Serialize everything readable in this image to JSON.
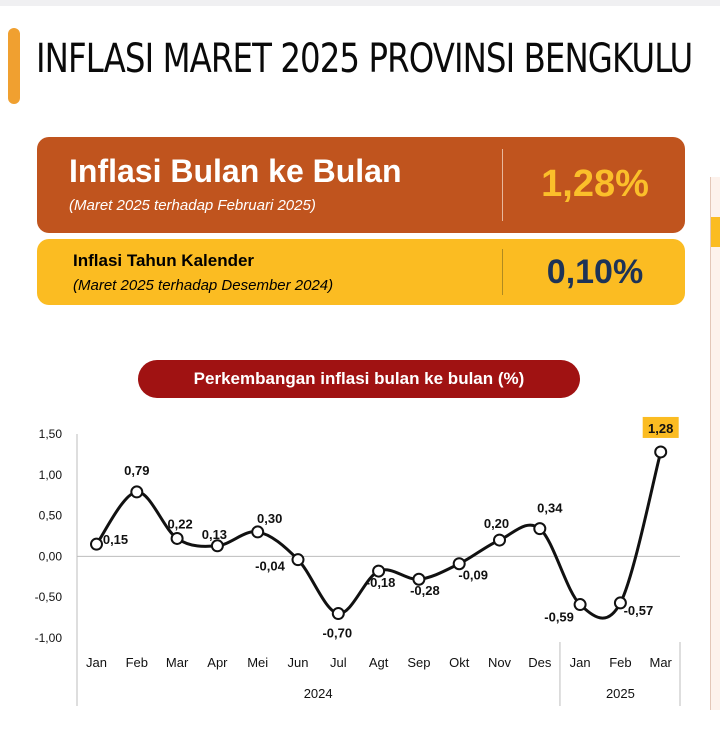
{
  "header": {
    "title": "INFLASI MARET 2025 PROVINSI BENGKULU"
  },
  "cards": {
    "mtm": {
      "title": "Inflasi Bulan ke Bulan",
      "subtitle": "(Maret 2025 terhadap Februari 2025)",
      "value": "1,28%"
    },
    "ytd": {
      "title": "Inflasi Tahun Kalender",
      "subtitle": "(Maret 2025 terhadap Desember 2024)",
      "value": "0,10%"
    }
  },
  "colors": {
    "accent": "#f0a030",
    "mtm_card": "#c0541e",
    "ytd_card": "#fbbc22",
    "mtm_value": "#fbbf2a",
    "ytd_value": "#1d3357",
    "chart_pill": "#a01212",
    "line": "#111111",
    "highlight_label": "#fbbc22"
  },
  "chart_data": {
    "type": "line",
    "title": "Perkembangan inflasi bulan ke bulan (%)",
    "categories": [
      "Jan",
      "Feb",
      "Mar",
      "Apr",
      "Mei",
      "Jun",
      "Jul",
      "Agt",
      "Sep",
      "Okt",
      "Nov",
      "Des",
      "Jan",
      "Feb",
      "Mar"
    ],
    "groups": [
      {
        "label": "2024",
        "count": 12
      },
      {
        "label": "2025",
        "count": 3
      }
    ],
    "values": [
      0.15,
      0.79,
      0.22,
      0.13,
      0.3,
      -0.04,
      -0.7,
      -0.18,
      -0.28,
      -0.09,
      0.2,
      0.34,
      -0.59,
      -0.57,
      1.28
    ],
    "data_labels": [
      "0,15",
      "0,79",
      "0,22",
      "0,13",
      "0,30",
      "-0,04",
      "-0,70",
      "-0,18",
      "-0,28",
      "-0,09",
      "0,20",
      "0,34",
      "-0,59",
      "-0,57",
      "1,28"
    ],
    "highlight_index": 14,
    "yticks": [
      "1,50",
      "1,00",
      "0,50",
      "0,00",
      "-0,50",
      "-1,00"
    ],
    "ylim": [
      -1.0,
      1.5
    ],
    "smooth": true,
    "grid": false,
    "legend": "none",
    "xlabel": "",
    "ylabel": ""
  }
}
